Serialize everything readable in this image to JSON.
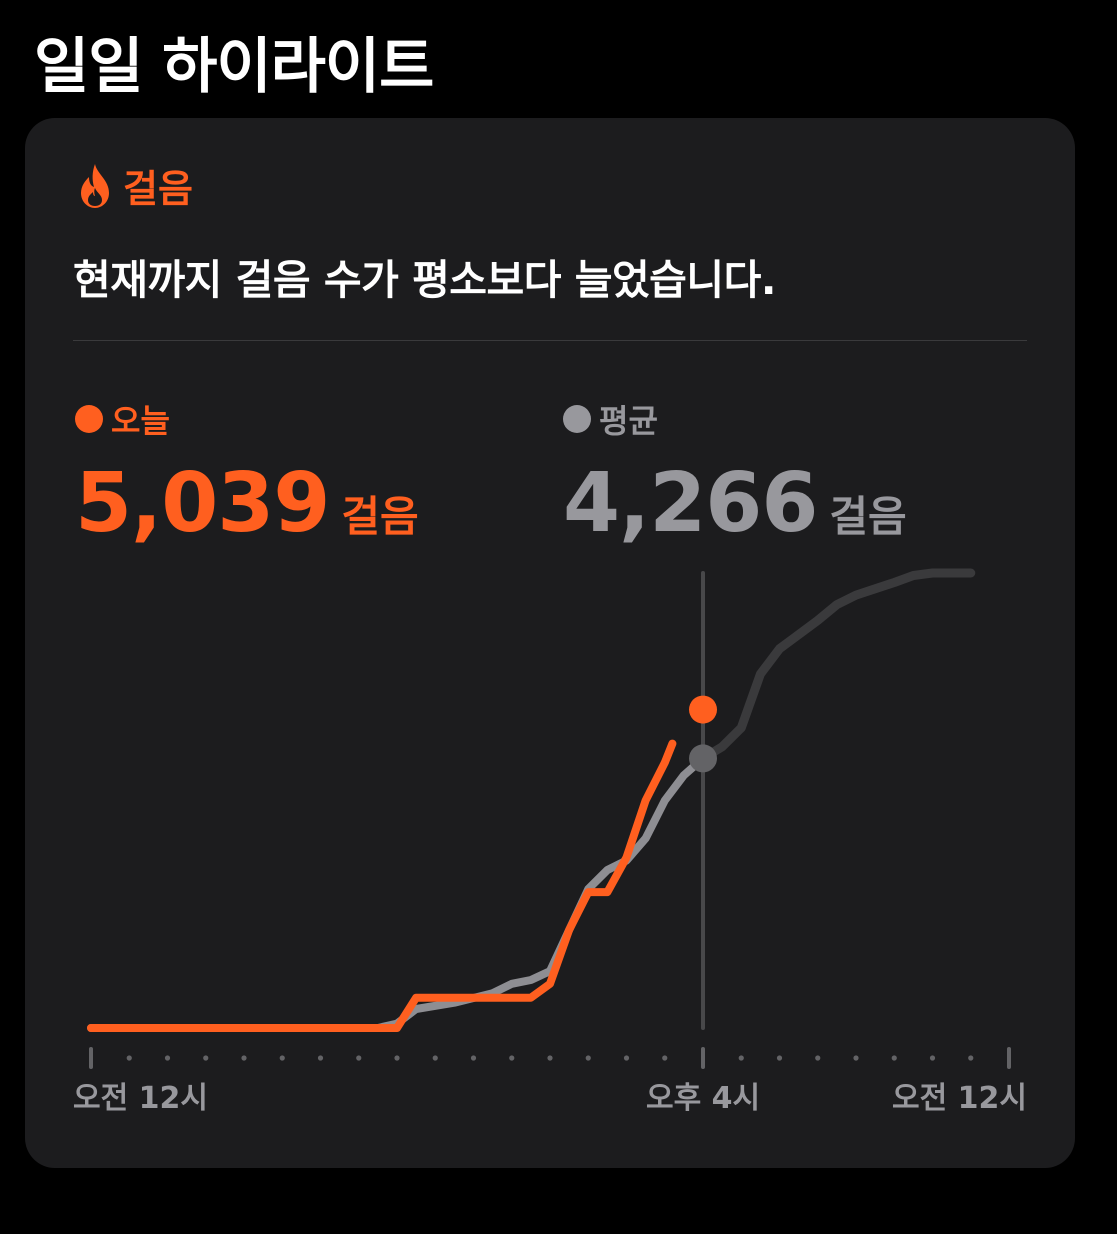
{
  "page": {
    "title": "일일 하이라이트"
  },
  "card": {
    "category": "걸음",
    "category_icon": "flame-icon",
    "summary": "현재까지 걸음 수가 평소보다 늘었습니다."
  },
  "metrics": {
    "today": {
      "label": "오늘",
      "value": "5,039",
      "unit": "걸음"
    },
    "average": {
      "label": "평균",
      "value": "4,266",
      "unit": "걸음"
    }
  },
  "colors": {
    "today": "#ff5f1f",
    "average_past": "#8e8e93",
    "average_future": "#3a3a3c",
    "card_bg": "#1c1c1e"
  },
  "chart_data": {
    "type": "line",
    "xlabel": "",
    "ylabel": "",
    "x_unit": "hours since 12 AM",
    "xlim": [
      0,
      24
    ],
    "ylim": [
      0,
      7200
    ],
    "tick_labels": [
      {
        "x": 0,
        "label": "오전 12시"
      },
      {
        "x": 16,
        "label": "오후 4시"
      },
      {
        "x": 24,
        "label": "오전 12시"
      }
    ],
    "current_time": 16,
    "series": [
      {
        "name": "오늘",
        "points": [
          [
            0,
            0
          ],
          [
            8,
            0
          ],
          [
            8.5,
            480
          ],
          [
            10,
            480
          ],
          [
            11.5,
            480
          ],
          [
            12,
            700
          ],
          [
            12.5,
            1550
          ],
          [
            13,
            2150
          ],
          [
            13.5,
            2150
          ],
          [
            14,
            2700
          ],
          [
            14.5,
            3600
          ],
          [
            15,
            4200
          ],
          [
            15.2,
            4500
          ]
        ],
        "current": [
          16,
          5039
        ]
      },
      {
        "name": "평균",
        "points": [
          [
            0,
            0
          ],
          [
            7.5,
            0
          ],
          [
            8,
            70
          ],
          [
            8.5,
            300
          ],
          [
            9.5,
            400
          ],
          [
            10.5,
            550
          ],
          [
            11,
            700
          ],
          [
            11.5,
            760
          ],
          [
            12,
            900
          ],
          [
            12.5,
            1550
          ],
          [
            13,
            2200
          ],
          [
            13.5,
            2500
          ],
          [
            14,
            2650
          ],
          [
            14.5,
            3000
          ],
          [
            15,
            3600
          ],
          [
            15.5,
            4000
          ],
          [
            16,
            4266
          ],
          [
            16.5,
            4450
          ],
          [
            17,
            4750
          ],
          [
            17.5,
            5600
          ],
          [
            18,
            6000
          ],
          [
            19,
            6450
          ],
          [
            19.5,
            6700
          ],
          [
            20,
            6850
          ],
          [
            21,
            7050
          ],
          [
            21.5,
            7160
          ],
          [
            22,
            7200
          ],
          [
            23,
            7200
          ]
        ],
        "current": [
          16,
          4266
        ]
      }
    ]
  }
}
